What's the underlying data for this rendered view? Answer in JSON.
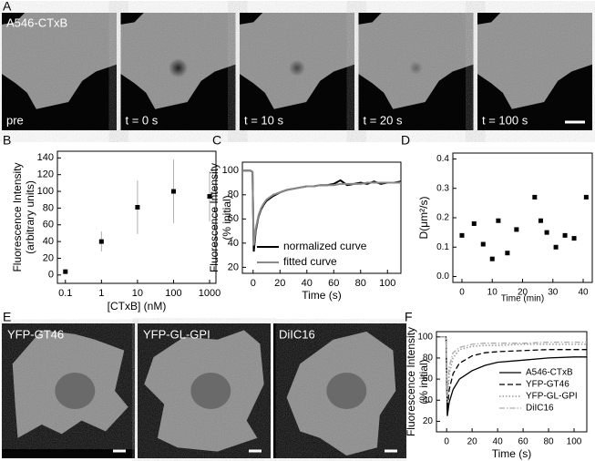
{
  "images_a": {
    "panel": "A",
    "caption": "A546-CTxB",
    "frames": [
      "pre",
      "t = 0 s",
      "t = 10 s",
      "t = 20 s",
      "t = 100 s"
    ]
  },
  "images_e": {
    "panel": "E",
    "frames": [
      "YFP-GT46",
      "YFP-GL-GPI",
      "DiIC16"
    ]
  },
  "chart_data": [
    {
      "panel": "B",
      "type": "scatter",
      "xlabel": "[CTxB] (nM)",
      "ylabel": [
        "Fluorescence Intensity",
        "(arbitrary units)"
      ],
      "xscale": "log",
      "x": [
        0.1,
        1,
        10,
        100,
        1000
      ],
      "series": [
        {
          "color": "#000000",
          "values": [
            4,
            40,
            81,
            100,
            94
          ],
          "errors": [
            1,
            12,
            32,
            38,
            30
          ],
          "error_color": "#b0b0b0"
        }
      ],
      "xlim": [
        0.06,
        1500
      ],
      "xticks": [
        0.1,
        1,
        10,
        100,
        1000
      ],
      "ylim": [
        -10,
        148
      ],
      "yticks": [
        0,
        20,
        40,
        60,
        80,
        100,
        120,
        140
      ]
    },
    {
      "panel": "C",
      "type": "line",
      "xlabel": "Time (s)",
      "ylabel": [
        "Fluorescence Intensity",
        "(% initial)"
      ],
      "x": [
        -8,
        -5,
        -2,
        -0.5,
        0.5,
        2,
        4,
        6,
        8,
        10,
        15,
        20,
        25,
        30,
        35,
        40,
        45,
        50,
        55,
        60,
        65,
        70,
        75,
        80,
        85,
        90,
        95,
        100,
        105,
        110
      ],
      "series": [
        {
          "name": "normalized curve",
          "color": "#000000",
          "dash": "solid",
          "width": 2,
          "values": [
            100,
            100,
            100,
            99,
            33,
            50,
            62,
            68,
            72,
            75,
            79,
            82,
            84,
            85,
            86,
            87,
            87,
            88,
            88,
            89,
            92,
            88,
            89,
            90,
            89,
            91,
            89,
            90,
            90,
            91
          ]
        },
        {
          "name": "fitted curve",
          "color": "#888888",
          "dash": "solid",
          "width": 2,
          "values": [
            100,
            100,
            100,
            99,
            38,
            52,
            63,
            69,
            73,
            76,
            80,
            82,
            84,
            85,
            86,
            87,
            87,
            88,
            88,
            88,
            89,
            89,
            89,
            89,
            90,
            90,
            90,
            90,
            90,
            90
          ]
        }
      ],
      "xlim": [
        -8,
        110
      ],
      "xticks": [
        0,
        20,
        40,
        60,
        80,
        100
      ],
      "ylim": [
        15,
        107
      ],
      "yticks": [
        20,
        40,
        60,
        80,
        100
      ]
    },
    {
      "panel": "D",
      "type": "scatter",
      "xlabel": "Time (min)",
      "ylabel": [
        "D(μm²/s)"
      ],
      "x": [
        0,
        4,
        7,
        10,
        12,
        15,
        18,
        24,
        26,
        28,
        31,
        34,
        37,
        41
      ],
      "series": [
        {
          "color": "#000000",
          "values": [
            0.14,
            0.18,
            0.11,
            0.06,
            0.19,
            0.08,
            0.16,
            0.27,
            0.19,
            0.15,
            0.1,
            0.14,
            0.13,
            0.27
          ]
        }
      ],
      "xlim": [
        -3,
        43
      ],
      "xticks": [
        0,
        10,
        20,
        30,
        40
      ],
      "ylim": [
        -0.02,
        0.42
      ],
      "yticks": [
        {
          "value": 0,
          "label": "0.0"
        },
        0.1,
        0.2,
        0.3,
        0.4
      ]
    },
    {
      "panel": "F",
      "type": "line",
      "xlabel": "Time (s)",
      "ylabel": [
        "Fluorescence Intensity",
        "(% initial)"
      ],
      "x": [
        -5,
        -0.5,
        0.5,
        2,
        5,
        10,
        20,
        30,
        40,
        60,
        80,
        100,
        110
      ],
      "series": [
        {
          "name": "A546-CTxB",
          "color": "#000000",
          "dash": "solid",
          "width": 1.3,
          "values": [
            100,
            100,
            25,
            38,
            50,
            60,
            68,
            73,
            76,
            78,
            80,
            81,
            81
          ]
        },
        {
          "name": "YFP-GT46",
          "color": "#000000",
          "dash": "dashed",
          "width": 1.3,
          "values": [
            100,
            100,
            30,
            50,
            65,
            75,
            82,
            85,
            86,
            87,
            88,
            88,
            88
          ]
        },
        {
          "name": "YFP-GL-GPI",
          "color": "#999999",
          "dash": "dotted",
          "width": 1.5,
          "values": [
            100,
            100,
            38,
            65,
            80,
            88,
            91,
            92,
            92,
            93,
            93,
            93,
            93
          ]
        },
        {
          "name": "DiIC16",
          "color": "#aaaaaa",
          "dash": "dashdot",
          "width": 1.3,
          "values": [
            100,
            100,
            45,
            72,
            85,
            90,
            93,
            94,
            94,
            94,
            95,
            95,
            95
          ]
        }
      ],
      "xlim": [
        -8,
        110
      ],
      "xticks": [
        0,
        20,
        40,
        60,
        80,
        100
      ],
      "ylim": [
        10,
        105
      ],
      "yticks": [
        20,
        40,
        60,
        80,
        100
      ]
    }
  ]
}
